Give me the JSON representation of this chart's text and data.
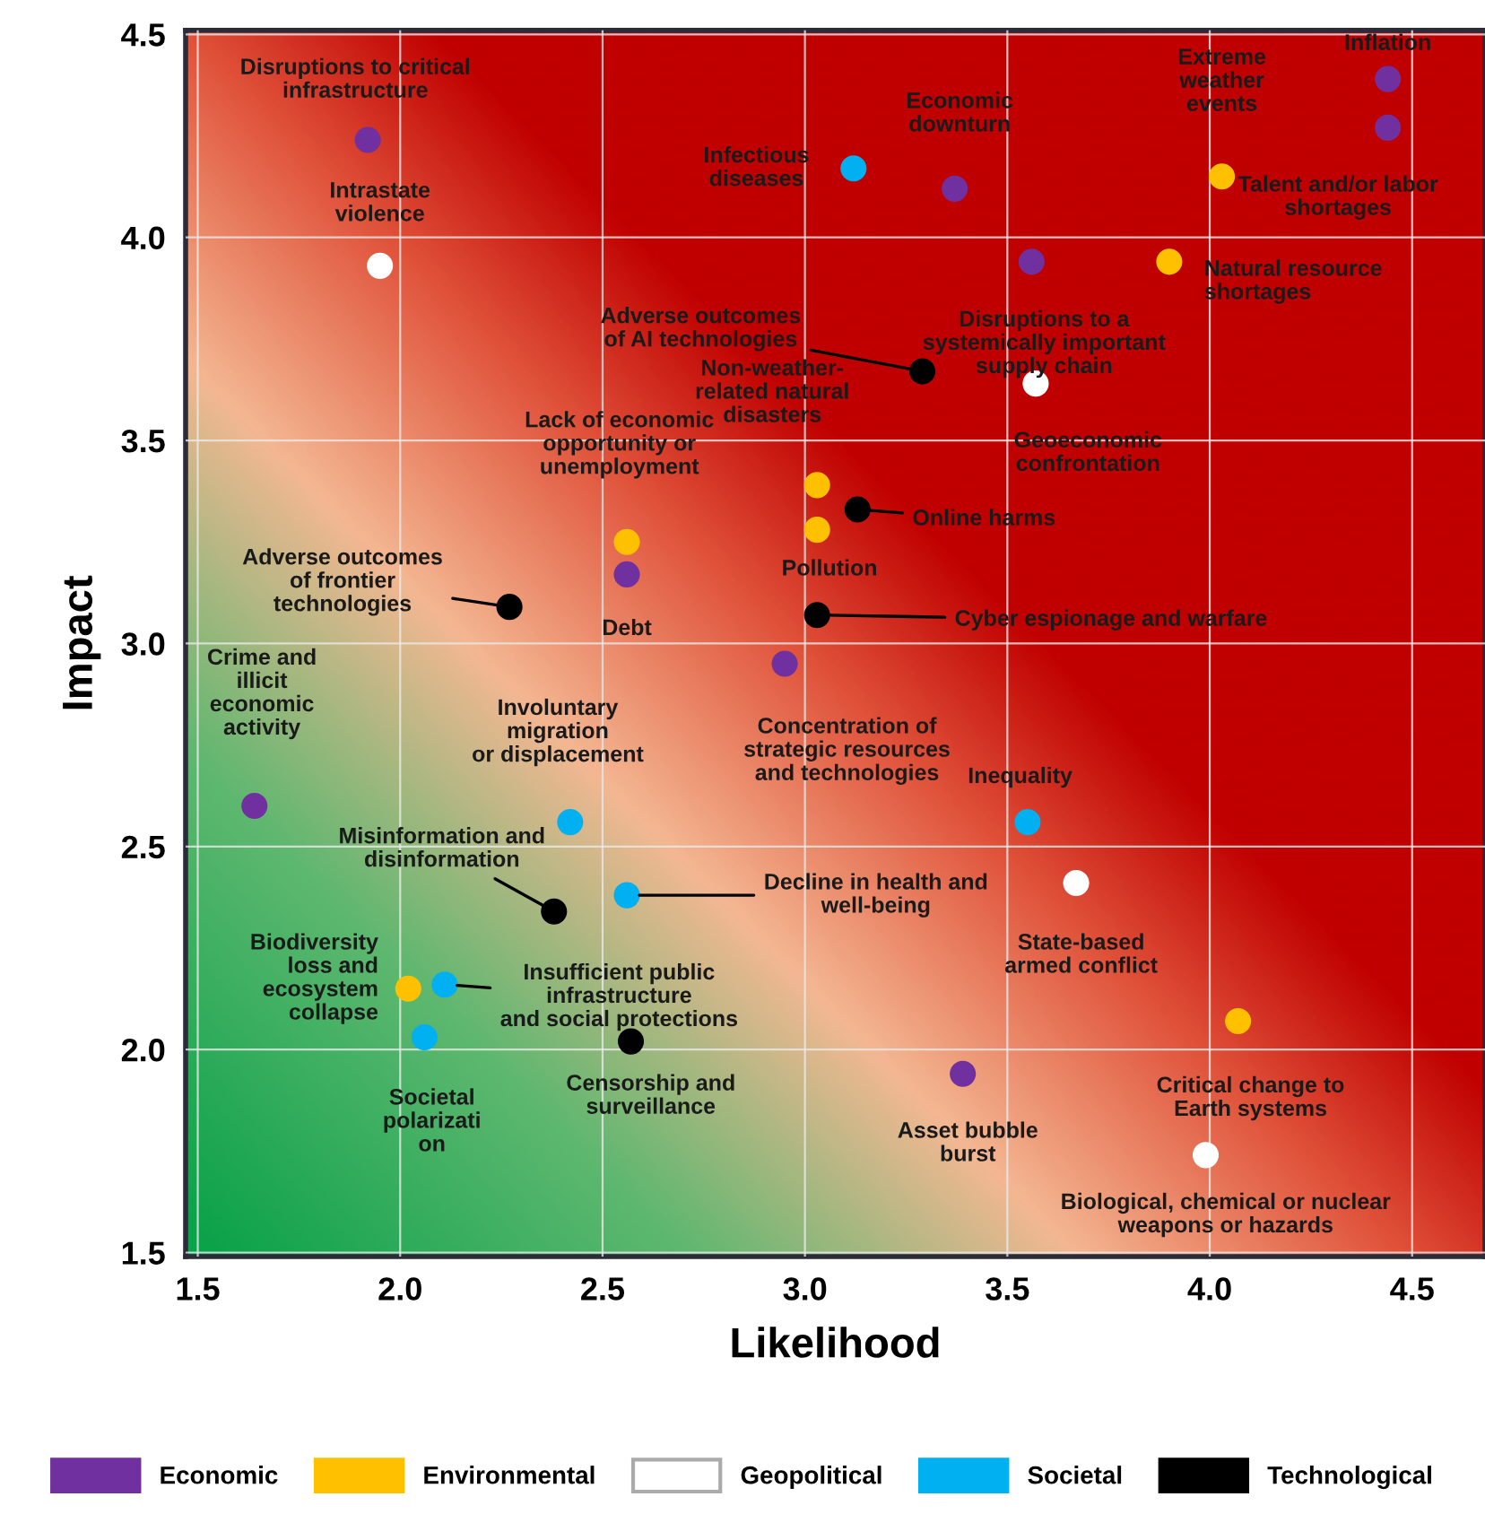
{
  "chart_data": {
    "type": "scatter",
    "xlabel": "Likelihood",
    "ylabel": "Impact",
    "xlim": [
      1.47,
      4.68
    ],
    "ylim": [
      1.49,
      4.51
    ],
    "xticks": [
      {
        "value": 1.5,
        "label": "1.5"
      },
      {
        "value": 2,
        "label": "2.0"
      },
      {
        "value": 2.5,
        "label": "2.5"
      },
      {
        "value": 3,
        "label": "3.0"
      },
      {
        "value": 3.5,
        "label": "3.5"
      },
      {
        "value": 4,
        "label": "4.0"
      },
      {
        "value": 4.5,
        "label": "4.5"
      }
    ],
    "yticks": [
      {
        "value": 1.5,
        "label": "1.5"
      },
      {
        "value": 2,
        "label": "2.0"
      },
      {
        "value": 2.5,
        "label": "2.5"
      },
      {
        "value": 3,
        "label": "3.0"
      },
      {
        "value": 3.5,
        "label": "3.5"
      },
      {
        "value": 4,
        "label": "4.0"
      },
      {
        "value": 4.5,
        "label": "4.5"
      }
    ],
    "grid": true,
    "legend": "bottom",
    "marker": "circle",
    "series": [
      {
        "name": "Economic",
        "color": "#7030a0",
        "x": [
          1.92,
          3.37,
          4.44,
          4.44,
          3.56,
          2.56,
          2.95,
          1.64,
          3.39
        ],
        "values": [
          4.24,
          4.12,
          4.39,
          4.27,
          3.94,
          3.17,
          2.95,
          2.6,
          1.94
        ]
      },
      {
        "name": "Environmental",
        "color": "#ffc000",
        "x": [
          4.03,
          3.9,
          3.03,
          3.03,
          2.56,
          2.02,
          4.07
        ],
        "values": [
          4.15,
          3.94,
          3.39,
          3.28,
          3.25,
          2.15,
          2.07
        ]
      },
      {
        "name": "Geopolitical",
        "color": "#ffffff",
        "x": [
          1.95,
          3.57,
          3.67,
          3.99
        ],
        "values": [
          3.93,
          3.64,
          2.41,
          1.74
        ]
      },
      {
        "name": "Societal",
        "color": "#00b0f0",
        "x": [
          3.12,
          3.55,
          2.42,
          2.56,
          2.11,
          2.06
        ],
        "values": [
          4.17,
          2.56,
          2.56,
          2.38,
          2.16,
          2.03
        ]
      },
      {
        "name": "Technological",
        "color": "#000000",
        "x": [
          3.29,
          3.13,
          3.03,
          2.27,
          2.38,
          2.57
        ],
        "values": [
          3.67,
          3.33,
          3.07,
          3.09,
          2.34,
          2.02
        ]
      }
    ],
    "annotations": [
      {
        "text": "Disruptions to critical\ninfrastructure",
        "x": 1.92,
        "y": 4.24
      },
      {
        "text": "Economic\ndownturn",
        "x": 3.37,
        "y": 4.12
      },
      {
        "text": "Inflation",
        "x": 4.44,
        "y": 4.39
      },
      {
        "text": "Talent and/or labor\nshortages",
        "x": 4.44,
        "y": 4.27
      },
      {
        "text": "Disruptions to a\nsystemically important\nsupply chain",
        "x": 3.56,
        "y": 3.94
      },
      {
        "text": "Debt",
        "x": 2.56,
        "y": 3.17
      },
      {
        "text": "Concentration of\nstrategic resources\nand technologies",
        "x": 2.95,
        "y": 2.95
      },
      {
        "text": "Crime and\nillicit\neconomic\nactivity",
        "x": 1.64,
        "y": 2.6
      },
      {
        "text": "Asset bubble\nburst",
        "x": 3.39,
        "y": 1.94
      },
      {
        "text": "Extreme\nweather\nevents",
        "x": 4.03,
        "y": 4.15
      },
      {
        "text": "Natural resource\nshortages",
        "x": 3.9,
        "y": 3.94
      },
      {
        "text": "Non-weather-\nrelated natural\ndisasters",
        "x": 3.03,
        "y": 3.39
      },
      {
        "text": "Pollution",
        "x": 3.03,
        "y": 3.28
      },
      {
        "text": "Lack of economic\nopportunity or\nunemployment",
        "x": 2.56,
        "y": 3.25
      },
      {
        "text": "Biodiversity\nloss and\necosystem\ncollapse",
        "x": 2.02,
        "y": 2.15
      },
      {
        "text": "Critical change to\nEarth systems",
        "x": 4.07,
        "y": 2.07
      },
      {
        "text": "Intrastate\nviolence",
        "x": 1.95,
        "y": 3.93
      },
      {
        "text": "Geoeconomic\nconfrontation",
        "x": 3.57,
        "y": 3.64
      },
      {
        "text": "State-based\narmed conflict",
        "x": 3.67,
        "y": 2.41
      },
      {
        "text": "Biological, chemical or nuclear\nweapons or hazards",
        "x": 3.99,
        "y": 1.74
      },
      {
        "text": "Infectious\ndiseases",
        "x": 3.12,
        "y": 4.17
      },
      {
        "text": "Inequality",
        "x": 3.55,
        "y": 2.56
      },
      {
        "text": "Involuntary\nmigration\nor displacement",
        "x": 2.42,
        "y": 2.56
      },
      {
        "text": "Misinformation and\ndisinformation",
        "x": 2.38,
        "y": 2.34
      },
      {
        "text": "Decline in health and\nwell-being",
        "x": 2.56,
        "y": 2.38
      },
      {
        "text": "Insufficient public\ninfrastructure\nand social protections",
        "x": 2.11,
        "y": 2.16
      },
      {
        "text": "Societal\npolarizati\non",
        "x": 2.06,
        "y": 2.03
      },
      {
        "text": "Adverse outcomes\nof AI technologies",
        "x": 3.29,
        "y": 3.67
      },
      {
        "text": "Online harms",
        "x": 3.13,
        "y": 3.33
      },
      {
        "text": "Cyber espionage and warfare",
        "x": 3.03,
        "y": 3.07
      },
      {
        "text": "Adverse outcomes\nof frontier\ntechnologies",
        "x": 2.27,
        "y": 3.09
      },
      {
        "text": "Censorship and\nsurveillance",
        "x": 2.57,
        "y": 2.02
      }
    ]
  }
}
